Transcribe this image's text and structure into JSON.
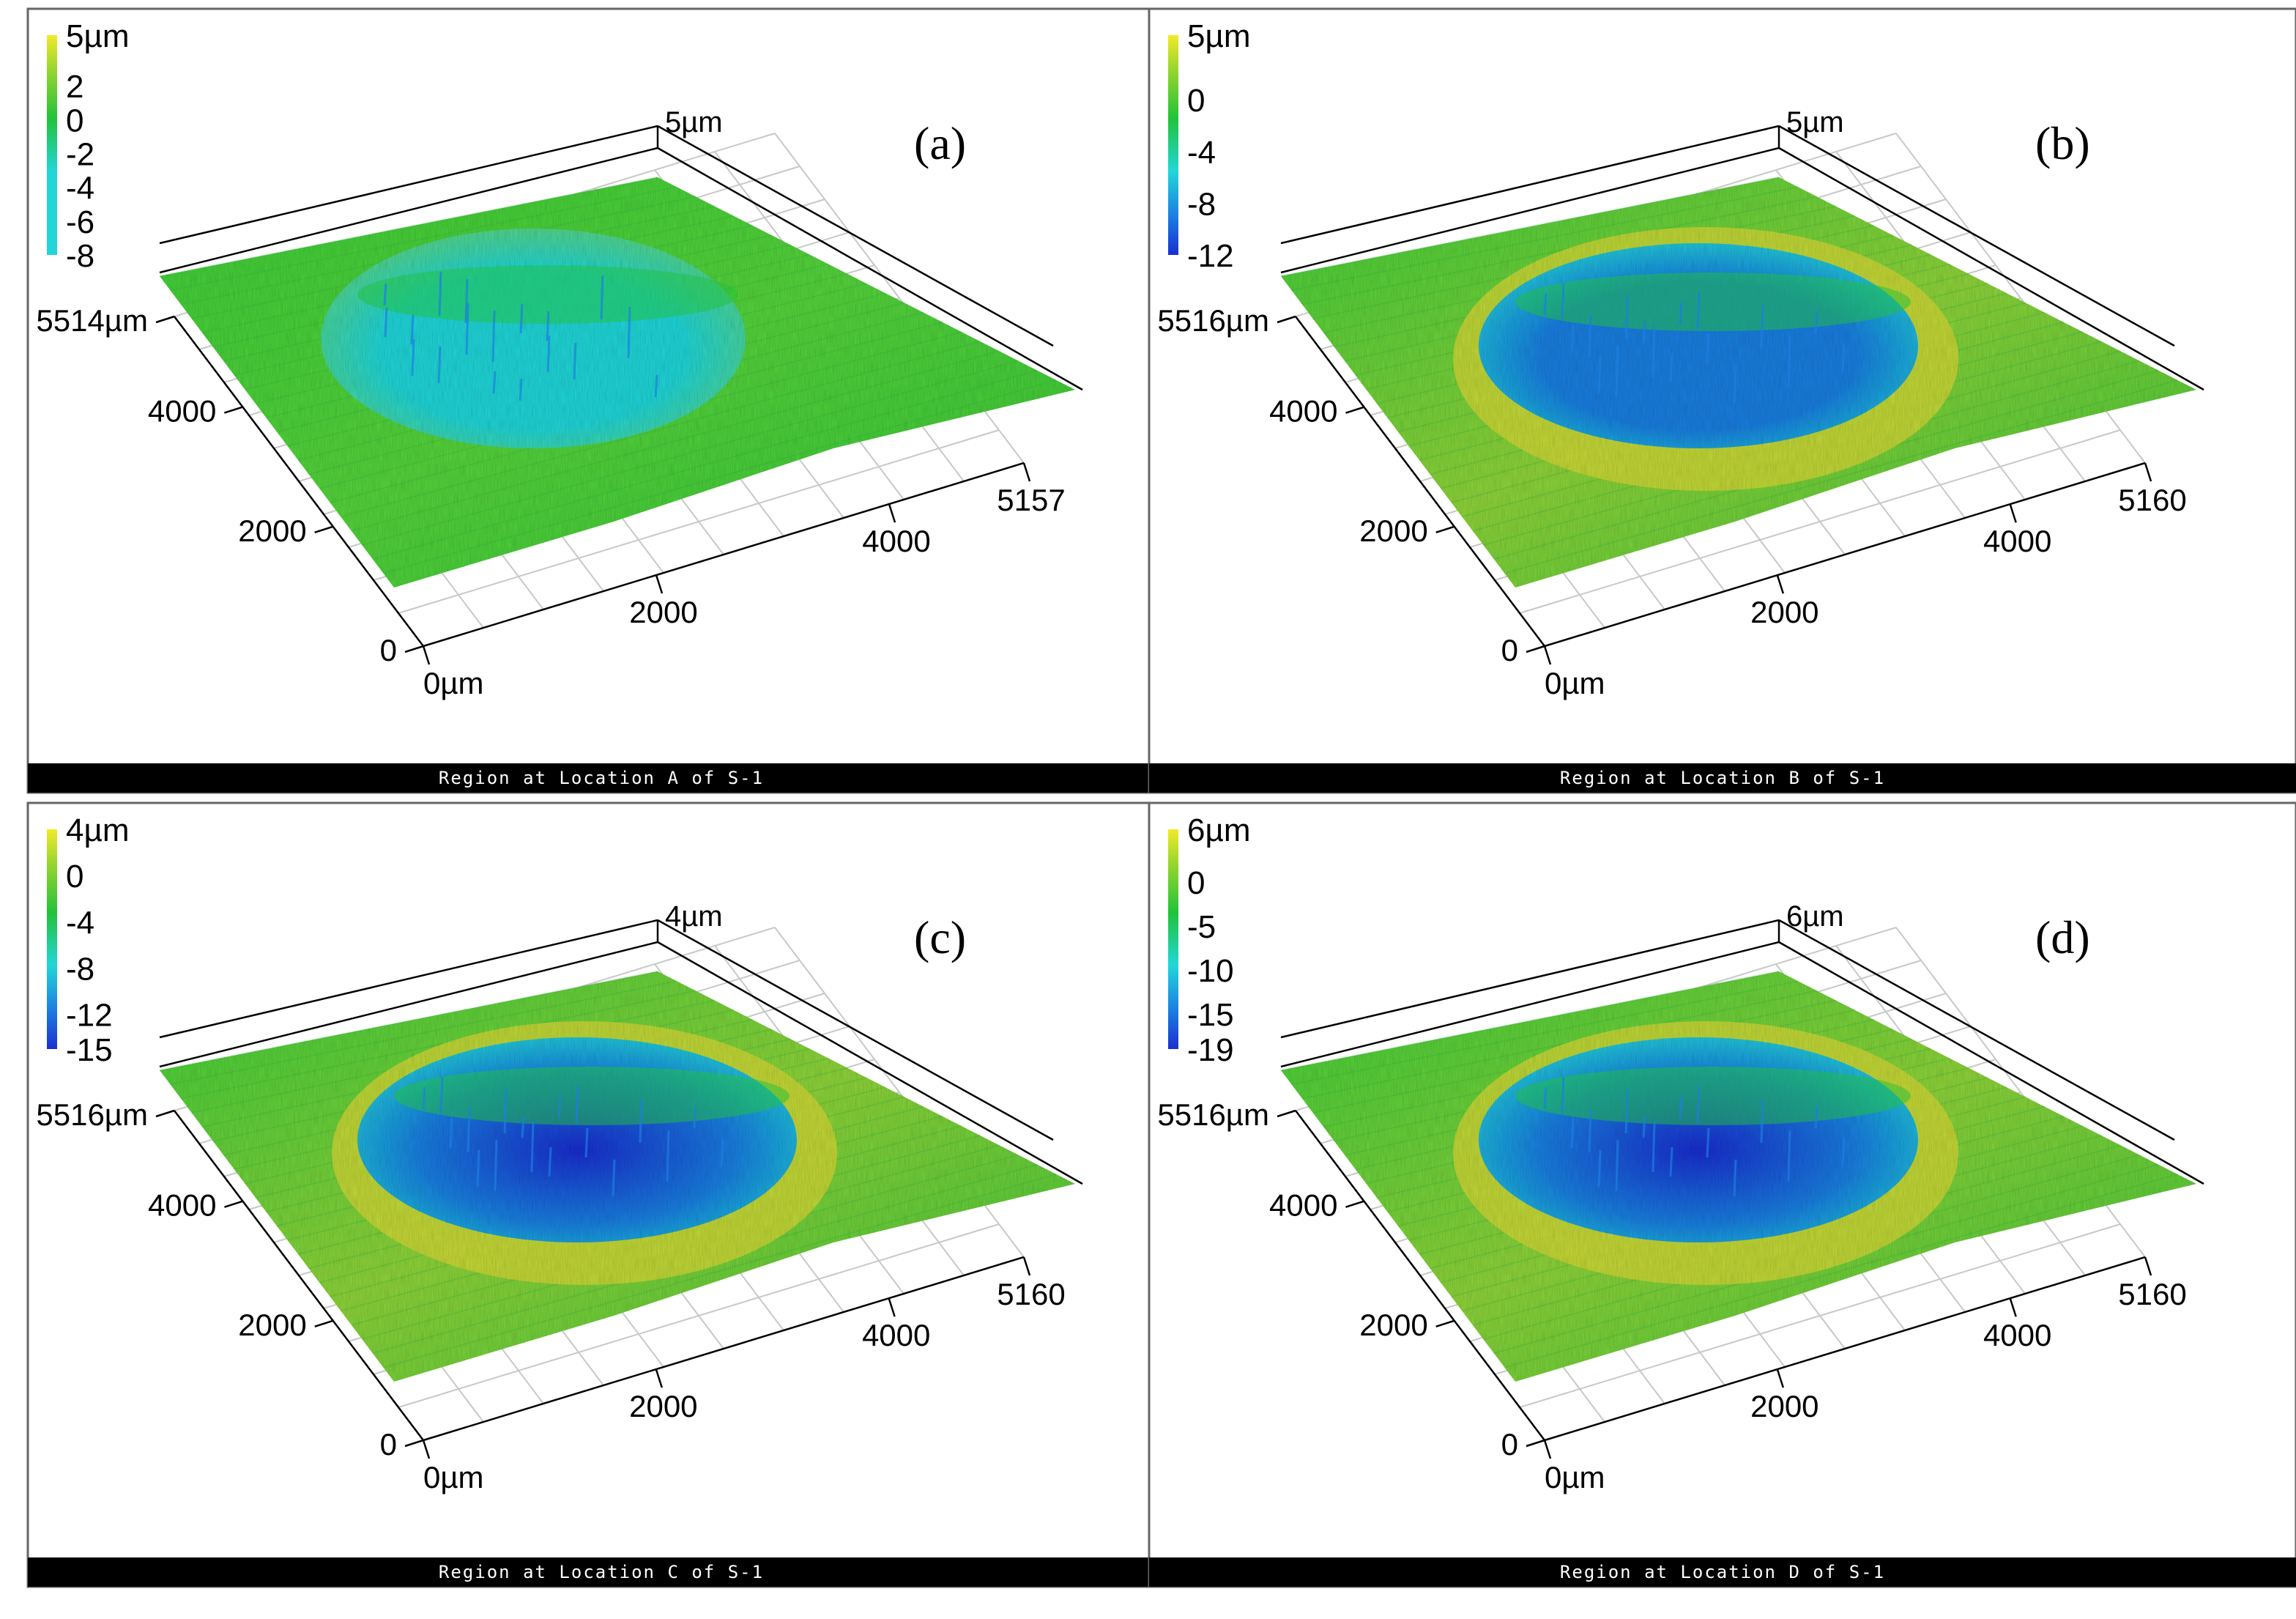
{
  "chart_data": [
    {
      "type": "surface3d",
      "panel": "(a)",
      "caption": "Region at Location A of S-1",
      "colorbar": {
        "labels": [
          "5µm",
          "2",
          "0",
          "-2",
          "-4",
          "-6",
          "-8"
        ],
        "values": [
          5,
          2,
          0,
          -2,
          -4,
          -6,
          -8
        ],
        "range": [
          -8,
          5
        ]
      },
      "z_top_label": "5µm",
      "y_axis": {
        "ticks": [
          "0",
          "2000",
          "4000",
          "5514µm"
        ],
        "values": [
          0,
          2000,
          4000,
          5514
        ]
      },
      "x_axis": {
        "ticks": [
          "0µm",
          "2000",
          "4000",
          "5157"
        ],
        "values": [
          0,
          2000,
          4000,
          5157
        ]
      },
      "pit_min_level": -8
    },
    {
      "type": "surface3d",
      "panel": "(b)",
      "caption": "Region at Location B of S-1",
      "colorbar": {
        "labels": [
          "5µm",
          "0",
          "-4",
          "-8",
          "-12"
        ],
        "values": [
          5,
          0,
          -4,
          -8,
          -12
        ],
        "range": [
          -12,
          5
        ]
      },
      "z_top_label": "5µm",
      "y_axis": {
        "ticks": [
          "0",
          "2000",
          "4000",
          "5516µm"
        ],
        "values": [
          0,
          2000,
          4000,
          5516
        ]
      },
      "x_axis": {
        "ticks": [
          "0µm",
          "2000",
          "4000",
          "5160"
        ],
        "values": [
          0,
          2000,
          4000,
          5160
        ]
      },
      "pit_min_level": -12
    },
    {
      "type": "surface3d",
      "panel": "(c)",
      "caption": "Region at Location C of S-1",
      "colorbar": {
        "labels": [
          "4µm",
          "0",
          "-4",
          "-8",
          "-12",
          "-15"
        ],
        "values": [
          4,
          0,
          -4,
          -8,
          -12,
          -15
        ],
        "range": [
          -15,
          4
        ]
      },
      "z_top_label": "4µm",
      "y_axis": {
        "ticks": [
          "0",
          "2000",
          "4000",
          "5516µm"
        ],
        "values": [
          0,
          2000,
          4000,
          5516
        ]
      },
      "x_axis": {
        "ticks": [
          "0µm",
          "2000",
          "4000",
          "5160"
        ],
        "values": [
          0,
          2000,
          4000,
          5160
        ]
      },
      "pit_min_level": -15
    },
    {
      "type": "surface3d",
      "panel": "(d)",
      "caption": "Region at Location D of S-1",
      "colorbar": {
        "labels": [
          "6µm",
          "0",
          "-5",
          "-10",
          "-15",
          "-19"
        ],
        "values": [
          6,
          0,
          -5,
          -10,
          -15,
          -19
        ],
        "range": [
          -19,
          6
        ]
      },
      "z_top_label": "6µm",
      "y_axis": {
        "ticks": [
          "0",
          "2000",
          "4000",
          "5516µm"
        ],
        "values": [
          0,
          2000,
          4000,
          5516
        ]
      },
      "x_axis": {
        "ticks": [
          "0µm",
          "2000",
          "4000",
          "5160"
        ],
        "values": [
          0,
          2000,
          4000,
          5160
        ]
      },
      "pit_min_level": -19
    }
  ],
  "colors": {
    "scale_top": "#f2ea2a",
    "scale_upper": "#9bd62f",
    "scale_mid": "#22c23a",
    "scale_cyan": "#22d6d8",
    "scale_blue": "#1d7fe0",
    "scale_deep": "#1a2fd0",
    "caption_bar": "#000000",
    "caption_text": "#ffffff",
    "frame": "#666666",
    "axis": "#000000",
    "grid": "#c8c8c8"
  }
}
